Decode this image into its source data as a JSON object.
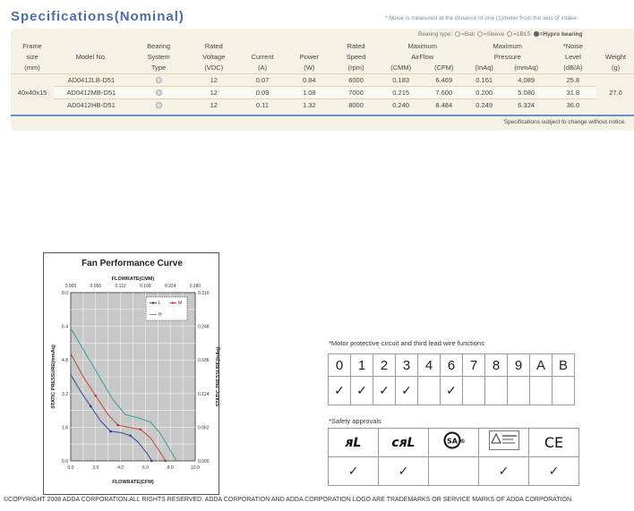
{
  "page": {
    "title": "Specifications(Nominal)",
    "noise_note": "*:Noise is measured at the distance of one (1)meter from the axis of intake.",
    "copyright": "©COPYRIGHT 2008 ADDA CORPORATION.ALL RIGHTS RESERVED. ADDA CORPORATION AND ADDA  CORPORATION LOGO ARE TRADEMARKS OR SERVICE MARKS OF ADDA CORPORATION."
  },
  "bearing_legend": {
    "prefix": "Bearing type:",
    "ball": "=Ball",
    "sleeve": "=Sleeve",
    "ebs": "=1B1S",
    "hypro": "=Hypro bearing"
  },
  "specs": {
    "headers": {
      "frame_size": [
        "Frame",
        "size",
        "(mm)"
      ],
      "model_no": "Model No.",
      "bearing_system": [
        "Bearing",
        "System",
        "Type"
      ],
      "rated_voltage": [
        "Rated",
        "Voltage",
        "(VDC)"
      ],
      "current": [
        "Current",
        "(A)"
      ],
      "power": [
        "Power",
        "(W)"
      ],
      "rated_speed": [
        "Rated",
        "Speed",
        "(rpm)"
      ],
      "max_airflow": [
        "Maximum",
        "AirFlow"
      ],
      "airflow_cmm": "(CMM)",
      "airflow_cfm": "(CFM)",
      "max_pressure": [
        "Maximum",
        "Pressure"
      ],
      "pressure_inaq": "(InAq)",
      "pressure_mmaq": "(mmAq)",
      "noise": [
        "*Noise",
        "Level",
        "(dB/A)"
      ],
      "weight": [
        "Weight",
        "(g)"
      ]
    },
    "frame_size": "40x40x15",
    "weight": "27.0",
    "rows": [
      {
        "model": "AD0412LB-D51",
        "voltage": "12",
        "current": "0.07",
        "power": "0.84",
        "speed": "6000",
        "cmm": "0.183",
        "cfm": "6.469",
        "inaq": "0.161",
        "mmaq": "4.089",
        "noise": "25.8"
      },
      {
        "model": "AD0412MB-D51",
        "voltage": "12",
        "current": "0.09",
        "power": "1.08",
        "speed": "7000",
        "cmm": "0.215",
        "cfm": "7.600",
        "inaq": "0.200",
        "mmaq": "5.080",
        "noise": "31.8"
      },
      {
        "model": "AD0412HB-D51",
        "voltage": "12",
        "current": "0.11",
        "power": "1.32",
        "speed": "8000",
        "cmm": "0.240",
        "cfm": "8.484",
        "inaq": "0.249",
        "mmaq": "6.324",
        "noise": "36.0"
      }
    ],
    "footer": "Specifications subject to change without notice."
  },
  "chart_data": {
    "type": "line",
    "title": "Fan Performance Curve",
    "xlabel": "FLOWRATE(CFM)",
    "x2label": "FLOWRATE(CMM)",
    "ylabel": "STATIC PRESSURE(mmAq)",
    "y2label": "STATIC PRESSURE(InAq)",
    "xlim": [
      0,
      10
    ],
    "ylim": [
      0,
      8
    ],
    "xticks": [
      "0.0",
      "2.0",
      "4.0",
      "6.0",
      "8.0",
      "10.0"
    ],
    "x2ticks": [
      "0.000",
      "0.056",
      "0.112",
      "0.168",
      "0.224",
      "0.280"
    ],
    "yticks": [
      "0.0",
      "1.6",
      "3.2",
      "4.8",
      "6.4",
      "8.0"
    ],
    "y2ticks": [
      "0.000",
      "0.062",
      "0.124",
      "0.186",
      "0.248",
      "0.310"
    ],
    "grid": true,
    "legend": "top-right",
    "series": [
      {
        "name": "L",
        "color": "#2b3a8c",
        "x": [
          0,
          0.8,
          1.6,
          2.4,
          3.2,
          4.0,
          4.8,
          5.4,
          6.2,
          6.5
        ],
        "y": [
          4.1,
          3.3,
          2.6,
          1.9,
          1.4,
          1.35,
          1.2,
          0.9,
          0.3,
          0
        ]
      },
      {
        "name": "M",
        "color": "#c0392b",
        "x": [
          0,
          1.0,
          2.0,
          3.0,
          3.8,
          4.6,
          5.6,
          6.4,
          7.2,
          7.6
        ],
        "y": [
          5.1,
          4.0,
          3.1,
          2.2,
          1.7,
          1.6,
          1.5,
          1.1,
          0.4,
          0
        ]
      },
      {
        "name": "H",
        "color": "#2a9d8f",
        "x": [
          0,
          1.2,
          2.4,
          3.4,
          4.4,
          5.4,
          6.4,
          7.2,
          8.0,
          8.5
        ],
        "y": [
          6.3,
          5.1,
          3.9,
          2.9,
          2.2,
          2.05,
          1.85,
          1.3,
          0.5,
          0
        ]
      }
    ]
  },
  "motor": {
    "label": "*Motor protective circuit and third lead wire functions",
    "codes": [
      "0",
      "1",
      "2",
      "3",
      "4",
      "6",
      "7",
      "8",
      "9",
      "A",
      "B"
    ],
    "checks": [
      true,
      true,
      true,
      true,
      false,
      true,
      false,
      false,
      false,
      false,
      false
    ],
    "check_glyph": "✓"
  },
  "safety": {
    "label": "*Safety approvals",
    "approvals": [
      {
        "icon": "ul-icon",
        "text": "ᴙL",
        "checked": true
      },
      {
        "icon": "cul-icon",
        "text": "cᴙL",
        "checked": true
      },
      {
        "icon": "csa-icon",
        "text": "SA",
        "checked": false
      },
      {
        "icon": "tuv-icon",
        "text": "TÜV",
        "checked": true
      },
      {
        "icon": "ce-icon",
        "text": "CE",
        "checked": true
      }
    ]
  }
}
